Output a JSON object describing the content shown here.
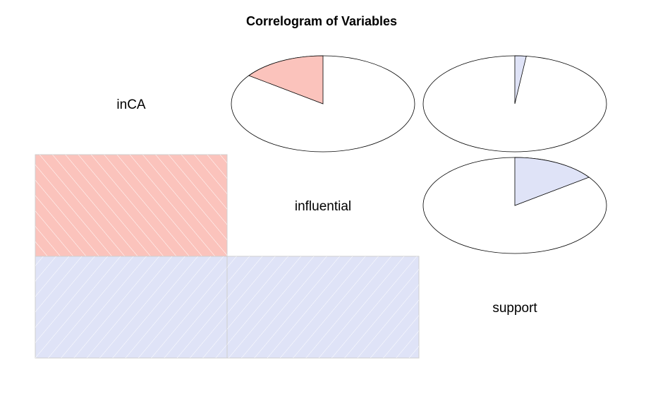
{
  "chart_data": {
    "type": "heatmap",
    "title": "Correlogram of Variables",
    "variables": [
      "inCA",
      "influential",
      "support"
    ],
    "lower_panel": "shade",
    "upper_panel": "pie",
    "correlations": [
      {
        "row": "influential",
        "col": "inCA",
        "value": -0.15
      },
      {
        "row": "support",
        "col": "inCA",
        "value": 0.02
      },
      {
        "row": "support",
        "col": "influential",
        "value": 0.15
      }
    ],
    "colors": {
      "negative": "#fbc3bc",
      "positive": "#dfe3f7",
      "hatch": "#ffffff",
      "outline": "#000000",
      "shade_border": "#cfcfcf"
    }
  }
}
